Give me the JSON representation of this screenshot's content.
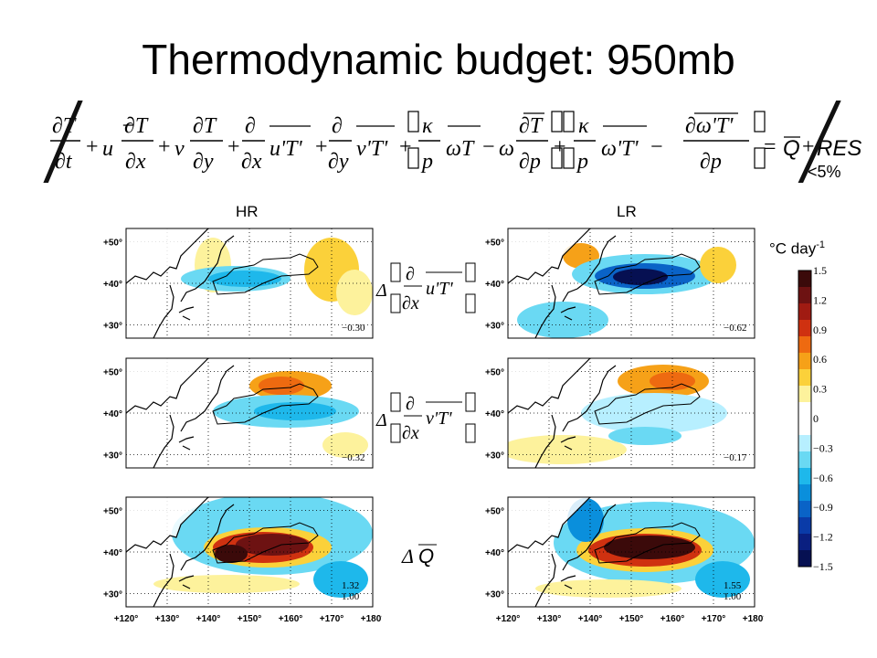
{
  "title": "Thermodynamic budget: 950mb",
  "threshold_label": "<5%",
  "columns": [
    {
      "label": "HR"
    },
    {
      "label": "LR"
    }
  ],
  "units_label": "°C day",
  "units_exponent": "-1",
  "lat_ticks": [
    "+50°",
    "+40°",
    "+30°"
  ],
  "lon_ticks": [
    "+120°",
    "+130°",
    "+140°",
    "+150°",
    "+160°",
    "+170°",
    "+180°"
  ],
  "panels": {
    "hr_row1_value": "−0.30",
    "lr_row1_value": "−0.62",
    "hr_row2_value": "−0.32",
    "lr_row2_value": "−0.17",
    "hr_row3_value_a": "1.32",
    "hr_row3_value_b": "1.00",
    "lr_row3_value_a": "1.55",
    "lr_row3_value_b": "1.00"
  },
  "colorbar": {
    "labels": [
      "1.5",
      "1.2",
      "0.9",
      "0.6",
      "0.3",
      "0",
      "−0.3",
      "−0.6",
      "−0.9",
      "−1.2",
      "−1.5"
    ],
    "colors": [
      "#3b0a0a",
      "#6d1212",
      "#a01b12",
      "#cf3110",
      "#ee6a10",
      "#f6a118",
      "#fbd13a",
      "#fdf29c",
      "#ffffff",
      "#ffffff",
      "#b7efff",
      "#6ad9f3",
      "#1eb8eb",
      "#0a8fdc",
      "#0a63c7",
      "#0a3ba8",
      "#0a1f80",
      "#061052"
    ]
  }
}
